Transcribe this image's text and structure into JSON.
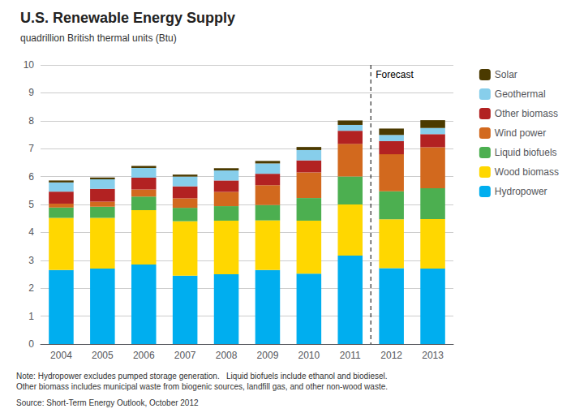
{
  "chart_data": {
    "type": "bar",
    "stacked": true,
    "title": "U.S. Renewable Energy Supply",
    "subtitle": "quadrillion British thermal units (Btu)",
    "categories": [
      "2004",
      "2005",
      "2006",
      "2007",
      "2008",
      "2009",
      "2010",
      "2011",
      "2012",
      "2013"
    ],
    "series": [
      {
        "name": "Hydropower",
        "color": "#00AEEF",
        "values": [
          2.65,
          2.7,
          2.85,
          2.45,
          2.5,
          2.65,
          2.52,
          3.17,
          2.72,
          2.7
        ]
      },
      {
        "name": "Wood biomass",
        "color": "#FFD700",
        "values": [
          1.87,
          1.82,
          1.95,
          1.95,
          1.92,
          1.78,
          1.9,
          1.83,
          1.75,
          1.78
        ]
      },
      {
        "name": "Liquid biofuels",
        "color": "#4CAF50",
        "values": [
          0.37,
          0.4,
          0.48,
          0.48,
          0.52,
          0.55,
          0.81,
          1.0,
          1.0,
          1.1
        ]
      },
      {
        "name": "Wind power",
        "color": "#D2691E",
        "values": [
          0.14,
          0.18,
          0.26,
          0.34,
          0.51,
          0.71,
          0.92,
          1.17,
          1.33,
          1.47
        ]
      },
      {
        "name": "Other biomass",
        "color": "#B22222",
        "values": [
          0.43,
          0.46,
          0.42,
          0.43,
          0.41,
          0.41,
          0.43,
          0.47,
          0.47,
          0.47
        ]
      },
      {
        "name": "Geothermal",
        "color": "#87CEEB",
        "values": [
          0.33,
          0.34,
          0.35,
          0.35,
          0.36,
          0.37,
          0.37,
          0.21,
          0.22,
          0.22
        ]
      },
      {
        "name": "Solar",
        "color": "#4B3A00",
        "values": [
          0.07,
          0.07,
          0.07,
          0.07,
          0.08,
          0.09,
          0.11,
          0.16,
          0.23,
          0.28
        ]
      }
    ],
    "ylim": [
      0,
      10
    ],
    "yticks": [
      0,
      1,
      2,
      3,
      4,
      5,
      6,
      7,
      8,
      9,
      10
    ],
    "grid": true,
    "legend": "right",
    "annotations": [
      {
        "text": "Forecast",
        "x": "2012",
        "line_style": "dashed"
      }
    ],
    "note": "Note: Hydropower excludes pumped storage generation.   Liquid biofuels include ethanol and biodiesel.\nOther biomass includes municipal waste from biogenic sources, landfill gas, and other non-wood waste.",
    "source": "Source: Short-Term Energy Outlook, October 2012"
  }
}
